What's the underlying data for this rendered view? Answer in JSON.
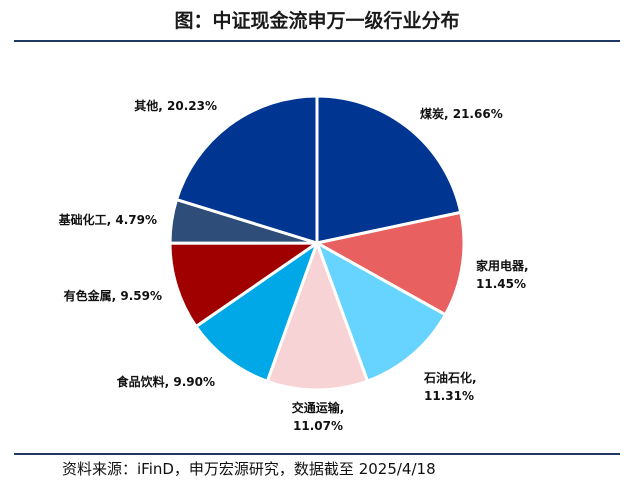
{
  "title": "图：中证现金流申万一级行业分布",
  "source": "资料来源：iFinD，申万宏源研究，数据截至 2025/4/18",
  "chart_data": {
    "type": "pie",
    "start_angle_deg": 0,
    "direction": "clockwise",
    "slices": [
      {
        "name": "煤炭",
        "value": 21.66,
        "label": "21.66%",
        "color": "#003591"
      },
      {
        "name": "家用电器",
        "value": 11.45,
        "label": "11.45%",
        "color": "#E86060"
      },
      {
        "name": "石油石化",
        "value": 11.31,
        "label": "11.31%",
        "color": "#66D4FF"
      },
      {
        "name": "交通运输",
        "value": 11.07,
        "label": "11.07%",
        "color": "#F8D3D5"
      },
      {
        "name": "食品饮料",
        "value": 9.9,
        "label": "9.90%",
        "color": "#00A8E8"
      },
      {
        "name": "有色金属",
        "value": 9.59,
        "label": "9.59%",
        "color": "#A00000"
      },
      {
        "name": "基础化工",
        "value": 4.79,
        "label": "4.79%",
        "color": "#2E4D78"
      },
      {
        "name": "其他",
        "value": 20.23,
        "label": "20.23%",
        "color": "#003591"
      }
    ]
  }
}
